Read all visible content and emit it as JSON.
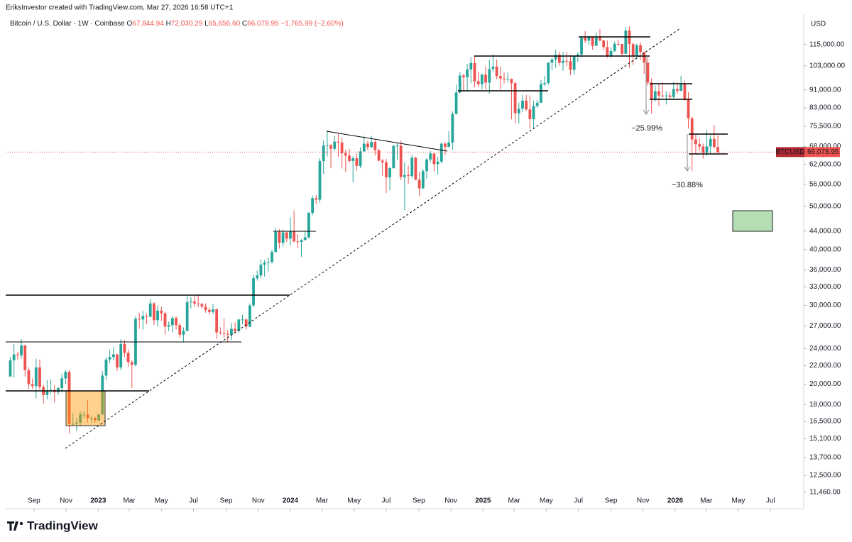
{
  "header": {
    "credit": "EriksInvestor created with TradingView.com, Mar 27, 2026 16:58 UTC+1"
  },
  "footer": {
    "logo": "TradingView"
  },
  "chart_data": {
    "type": "candlestick",
    "title": "Bitcoin / U.S. Dollar · 1W · Coinbase",
    "ohlc_labels": [
      {
        "label": "O",
        "value": "67,844.94"
      },
      {
        "label": "H",
        "value": "72,030.29"
      },
      {
        "label": "L",
        "value": "65,656.60"
      },
      {
        "label": "C",
        "value": "66,078.95"
      }
    ],
    "change": "−1,765.99 (−2.60%)",
    "axis_unit": "USD",
    "symbol": "BTCUSD",
    "last_price_label": "66,078.95",
    "annotations": [
      "−25.99%",
      "−30.88%"
    ],
    "up_color": "#26a69a",
    "down_color": "#ef5350",
    "log_scale": true,
    "grid": false,
    "ylim": [
      10570,
      134400
    ],
    "yticks": [
      {
        "value": 115000,
        "label": "115,000.00"
      },
      {
        "value": 103000,
        "label": "103,000.00"
      },
      {
        "value": 91000,
        "label": "91,000.00"
      },
      {
        "value": 83000,
        "label": "83,000.00"
      },
      {
        "value": 75500,
        "label": "75,500.00"
      },
      {
        "value": 68000,
        "label": "68,000.00"
      },
      {
        "value": 62000,
        "label": "62,000.00"
      },
      {
        "value": 56000,
        "label": "56,000.00"
      },
      {
        "value": 50000,
        "label": "50,000.00"
      },
      {
        "value": 44000,
        "label": "44,000.00"
      },
      {
        "value": 40000,
        "label": "40,000.00"
      },
      {
        "value": 36000,
        "label": "36,000.00"
      },
      {
        "value": 33000,
        "label": "33,000.00"
      },
      {
        "value": 30000,
        "label": "30,000.00"
      },
      {
        "value": 27000,
        "label": "27,000.00"
      },
      {
        "value": 24000,
        "label": "24,000.00"
      },
      {
        "value": 22000,
        "label": "22,000.00"
      },
      {
        "value": 20000,
        "label": "20,000.00"
      },
      {
        "value": 18000,
        "label": "18,000.00"
      },
      {
        "value": 16500,
        "label": "16,500.00"
      },
      {
        "value": 15100,
        "label": "15,100.00"
      },
      {
        "value": 13700,
        "label": "13,700.00"
      },
      {
        "value": 12500,
        "label": "12,500.00"
      },
      {
        "value": 11460,
        "label": "11,460.00"
      }
    ],
    "xlim": [
      -1.25,
      215.3
    ],
    "xticks": [
      {
        "value": 6.43,
        "label": "Sep"
      },
      {
        "value": 15.14,
        "label": "Nov"
      },
      {
        "value": 23.86,
        "label": "2023"
      },
      {
        "value": 32.29,
        "label": "Mar"
      },
      {
        "value": 41,
        "label": "May"
      },
      {
        "value": 49.71,
        "label": "Jul"
      },
      {
        "value": 58.57,
        "label": "Sep"
      },
      {
        "value": 67.29,
        "label": "Nov"
      },
      {
        "value": 76,
        "label": "2024"
      },
      {
        "value": 84.57,
        "label": "Mar"
      },
      {
        "value": 93.29,
        "label": "May"
      },
      {
        "value": 102,
        "label": "Jul"
      },
      {
        "value": 110.86,
        "label": "Sep"
      },
      {
        "value": 119.57,
        "label": "Nov"
      },
      {
        "value": 128.29,
        "label": "2025"
      },
      {
        "value": 136.71,
        "label": "Mar"
      },
      {
        "value": 145.43,
        "label": "May"
      },
      {
        "value": 154.14,
        "label": "Jul"
      },
      {
        "value": 163,
        "label": "Sep"
      },
      {
        "value": 171.71,
        "label": "Nov"
      },
      {
        "value": 180.43,
        "label": "2026"
      },
      {
        "value": 188.86,
        "label": "Mar"
      },
      {
        "value": 197.57,
        "label": "May"
      },
      {
        "value": 206.29,
        "label": "Jul"
      }
    ],
    "candles": [
      [
        20800,
        23000,
        20800,
        22600
      ],
      [
        22600,
        24600,
        20700,
        23300
      ],
      [
        23300,
        23600,
        22700,
        23200
      ],
      [
        23200,
        25200,
        22800,
        24400
      ],
      [
        24400,
        24500,
        20800,
        21500
      ],
      [
        21500,
        21800,
        19500,
        20000
      ],
      [
        20000,
        20600,
        19500,
        19800
      ],
      [
        19800,
        22800,
        18600,
        21800
      ],
      [
        21800,
        22700,
        19400,
        19700
      ],
      [
        19700,
        19900,
        18100,
        18900
      ],
      [
        18900,
        20400,
        18500,
        19300
      ],
      [
        19300,
        20500,
        19000,
        19400
      ],
      [
        19400,
        19900,
        18200,
        19200
      ],
      [
        19200,
        19700,
        18900,
        19600
      ],
      [
        19600,
        21100,
        19200,
        20600
      ],
      [
        20600,
        21500,
        20000,
        21300
      ],
      [
        21300,
        21500,
        15500,
        16300
      ],
      [
        16300,
        17200,
        16200,
        16300
      ],
      [
        16300,
        16800,
        15700,
        16400
      ],
      [
        16400,
        17400,
        16100,
        17100
      ],
      [
        17100,
        17400,
        16800,
        17100
      ],
      [
        17100,
        18400,
        16400,
        16800
      ],
      [
        16800,
        17000,
        16400,
        16800
      ],
      [
        16800,
        16900,
        16400,
        16600
      ],
      [
        16600,
        17200,
        16500,
        17100
      ],
      [
        17100,
        21400,
        17100,
        20900
      ],
      [
        20900,
        23000,
        20400,
        22700
      ],
      [
        22700,
        23900,
        22300,
        23000
      ],
      [
        23000,
        24200,
        22600,
        23300
      ],
      [
        23300,
        23400,
        21400,
        21800
      ],
      [
        21800,
        25200,
        21500,
        24600
      ],
      [
        24600,
        25100,
        23000,
        23500
      ],
      [
        23500,
        23900,
        21900,
        22400
      ],
      [
        22400,
        22600,
        19600,
        22100
      ],
      [
        22100,
        28400,
        21900,
        28000
      ],
      [
        28000,
        28900,
        26600,
        27900
      ],
      [
        27900,
        29200,
        26500,
        28400
      ],
      [
        28400,
        28800,
        27200,
        28300
      ],
      [
        28300,
        31000,
        28200,
        30300
      ],
      [
        30300,
        30500,
        27100,
        27800
      ],
      [
        27800,
        30000,
        26900,
        29200
      ],
      [
        29200,
        29800,
        27700,
        28800
      ],
      [
        28800,
        29000,
        25800,
        26900
      ],
      [
        26900,
        27600,
        26300,
        27100
      ],
      [
        27100,
        28400,
        26100,
        28100
      ],
      [
        28100,
        28400,
        26500,
        27100
      ],
      [
        27100,
        27400,
        25400,
        25800
      ],
      [
        25800,
        26800,
        24800,
        26300
      ],
      [
        26300,
        31400,
        26300,
        30500
      ],
      [
        30500,
        31300,
        29500,
        30600
      ],
      [
        30600,
        31500,
        29800,
        30300
      ],
      [
        30300,
        31800,
        29700,
        30200
      ],
      [
        30200,
        30400,
        29500,
        29800
      ],
      [
        29800,
        30300,
        28900,
        29300
      ],
      [
        29300,
        29700,
        28600,
        29000
      ],
      [
        29000,
        30200,
        28700,
        29400
      ],
      [
        29400,
        29500,
        25200,
        26100
      ],
      [
        26100,
        26800,
        25800,
        26000
      ],
      [
        26000,
        28100,
        25400,
        25900
      ],
      [
        25900,
        26400,
        24900,
        25800
      ],
      [
        25800,
        27400,
        25100,
        26600
      ],
      [
        26600,
        27500,
        26000,
        26300
      ],
      [
        26300,
        28000,
        26100,
        27900
      ],
      [
        27900,
        28600,
        27200,
        27900
      ],
      [
        27900,
        28000,
        26500,
        26900
      ],
      [
        26900,
        30300,
        26800,
        30000
      ],
      [
        30000,
        35200,
        29700,
        34500
      ],
      [
        34500,
        35900,
        34100,
        35000
      ],
      [
        35000,
        38000,
        34500,
        37000
      ],
      [
        37000,
        37900,
        34800,
        37400
      ],
      [
        37400,
        38400,
        35700,
        37500
      ],
      [
        37500,
        40000,
        37200,
        39500
      ],
      [
        39500,
        44700,
        39400,
        43800
      ],
      [
        43800,
        44400,
        40200,
        41400
      ],
      [
        41400,
        44300,
        40600,
        43700
      ],
      [
        43700,
        43800,
        41600,
        42300
      ],
      [
        42300,
        47200,
        40800,
        43900
      ],
      [
        43900,
        48900,
        41500,
        41700
      ],
      [
        41700,
        43300,
        40300,
        41600
      ],
      [
        41600,
        42200,
        38500,
        42000
      ],
      [
        42000,
        43900,
        41900,
        42600
      ],
      [
        42600,
        48500,
        42300,
        48300
      ],
      [
        48300,
        52800,
        47700,
        52100
      ],
      [
        52100,
        52900,
        50600,
        51700
      ],
      [
        51700,
        64000,
        50900,
        63100
      ],
      [
        63100,
        70100,
        59000,
        68400
      ],
      [
        68400,
        73800,
        64600,
        68400
      ],
      [
        68400,
        68900,
        60800,
        67200
      ],
      [
        67200,
        71800,
        66600,
        69700
      ],
      [
        69700,
        72700,
        64500,
        69400
      ],
      [
        69400,
        71300,
        60700,
        65700
      ],
      [
        65700,
        66900,
        59600,
        64900
      ],
      [
        64900,
        67200,
        62500,
        63100
      ],
      [
        63100,
        64700,
        56500,
        64000
      ],
      [
        64000,
        65500,
        60100,
        61500
      ],
      [
        61500,
        67700,
        60800,
        66300
      ],
      [
        66300,
        71900,
        66100,
        69000
      ],
      [
        69000,
        70000,
        66700,
        67800
      ],
      [
        67800,
        71900,
        67500,
        69600
      ],
      [
        69600,
        70200,
        65000,
        66700
      ],
      [
        66700,
        67200,
        63000,
        63200
      ],
      [
        63200,
        63800,
        58400,
        62700
      ],
      [
        62700,
        63800,
        53500,
        58000
      ],
      [
        58000,
        61200,
        54300,
        60800
      ],
      [
        60800,
        68400,
        60700,
        68200
      ],
      [
        68200,
        69400,
        63500,
        68300
      ],
      [
        68300,
        70000,
        57200,
        58100
      ],
      [
        58100,
        62700,
        49000,
        58700
      ],
      [
        58700,
        61700,
        56100,
        58400
      ],
      [
        58400,
        65000,
        57800,
        64200
      ],
      [
        64200,
        64500,
        57200,
        57300
      ],
      [
        57300,
        59800,
        52600,
        54800
      ],
      [
        54800,
        60600,
        54600,
        59900
      ],
      [
        59900,
        64100,
        57500,
        63600
      ],
      [
        63600,
        66500,
        62700,
        65600
      ],
      [
        65600,
        65600,
        59800,
        62100
      ],
      [
        62100,
        64500,
        58900,
        62900
      ],
      [
        62900,
        69400,
        62400,
        69000
      ],
      [
        69000,
        69500,
        65100,
        67900
      ],
      [
        67900,
        73600,
        67600,
        69400
      ],
      [
        69400,
        81500,
        66800,
        80400
      ],
      [
        80400,
        93500,
        80200,
        89800
      ],
      [
        89800,
        99600,
        89400,
        98000
      ],
      [
        98000,
        98900,
        90800,
        97200
      ],
      [
        97200,
        104000,
        90500,
        101100
      ],
      [
        101100,
        107800,
        94200,
        104500
      ],
      [
        104500,
        108300,
        92200,
        95200
      ],
      [
        95200,
        99900,
        92500,
        93700
      ],
      [
        93700,
        99000,
        91300,
        98400
      ],
      [
        98400,
        102700,
        91200,
        94500
      ],
      [
        94500,
        106400,
        89300,
        101300
      ],
      [
        101300,
        109400,
        99500,
        102600
      ],
      [
        102600,
        106500,
        96200,
        97700
      ],
      [
        97700,
        102500,
        91200,
        96500
      ],
      [
        96500,
        99500,
        94100,
        96100
      ],
      [
        96100,
        99500,
        94800,
        96300
      ],
      [
        96300,
        96500,
        78200,
        94200
      ],
      [
        94200,
        95000,
        76600,
        80700
      ],
      [
        80700,
        85300,
        76600,
        82600
      ],
      [
        82600,
        88800,
        81200,
        86100
      ],
      [
        86100,
        88700,
        81600,
        82300
      ],
      [
        82300,
        88500,
        74500,
        78300
      ],
      [
        78300,
        86100,
        74600,
        83800
      ],
      [
        83800,
        86400,
        83000,
        85200
      ],
      [
        85200,
        95800,
        85100,
        93800
      ],
      [
        93800,
        97900,
        92800,
        94300
      ],
      [
        94300,
        104900,
        93400,
        104700
      ],
      [
        104700,
        107100,
        100700,
        106500
      ],
      [
        106500,
        112000,
        102000,
        109000
      ],
      [
        109000,
        110700,
        103100,
        104600
      ],
      [
        104600,
        110500,
        100400,
        105700
      ],
      [
        105700,
        110600,
        102800,
        105500
      ],
      [
        105500,
        108900,
        98200,
        100900
      ],
      [
        100900,
        108500,
        98500,
        108400
      ],
      [
        108400,
        110500,
        105100,
        109200
      ],
      [
        109200,
        119500,
        107500,
        119100
      ],
      [
        119100,
        123200,
        115800,
        117300
      ],
      [
        117300,
        120200,
        114700,
        119400
      ],
      [
        119400,
        119800,
        112000,
        114200
      ],
      [
        114200,
        122300,
        114200,
        119300
      ],
      [
        119300,
        124500,
        116800,
        117400
      ],
      [
        117400,
        117600,
        111700,
        113500
      ],
      [
        113500,
        117400,
        107300,
        108200
      ],
      [
        108200,
        113400,
        107300,
        111200
      ],
      [
        111200,
        116800,
        110600,
        115300
      ],
      [
        115300,
        118000,
        114400,
        115200
      ],
      [
        115200,
        115400,
        108600,
        109600
      ],
      [
        109600,
        125600,
        109600,
        123500
      ],
      [
        123500,
        126200,
        102000,
        115200
      ],
      [
        115200,
        116000,
        103500,
        108700
      ],
      [
        108700,
        115500,
        106700,
        114500
      ],
      [
        114500,
        116400,
        106300,
        110600
      ],
      [
        110600,
        110700,
        98900,
        104700
      ],
      [
        104700,
        107500,
        93000,
        94500
      ],
      [
        94500,
        96600,
        80600,
        86800
      ],
      [
        86800,
        93100,
        85600,
        90400
      ],
      [
        90400,
        94100,
        83800,
        88400
      ],
      [
        88400,
        94600,
        87500,
        88200
      ],
      [
        88200,
        90300,
        84400,
        88400
      ],
      [
        88400,
        90000,
        86500,
        87800
      ],
      [
        87800,
        94800,
        87000,
        91400
      ],
      [
        91400,
        94700,
        89300,
        90600
      ],
      [
        90600,
        97900,
        90300,
        93600
      ],
      [
        93600,
        95500,
        86000,
        86500
      ],
      [
        86500,
        89900,
        74600,
        78600
      ],
      [
        78600,
        79300,
        60000,
        70500
      ],
      [
        70500,
        72300,
        65500,
        68800
      ],
      [
        68800,
        70900,
        66500,
        68000
      ],
      [
        68000,
        69000,
        63900,
        65800
      ],
      [
        65800,
        74000,
        64800,
        68000
      ],
      [
        68000,
        72000,
        65600,
        70700
      ],
      [
        70700,
        76000,
        67300,
        67844.94
      ],
      [
        67844.94,
        72030.29,
        65656.6,
        66078.95
      ]
    ]
  }
}
